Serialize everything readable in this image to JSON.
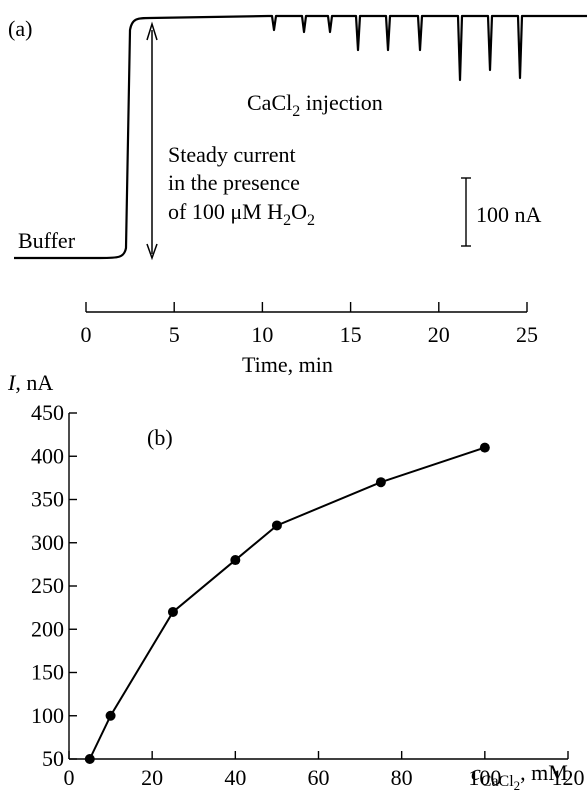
{
  "panel_a": {
    "label": "(a)",
    "annotation_injection": "CaCl",
    "annotation_injection_sub": "2",
    "annotation_injection_rest": " injection",
    "steady_line1": "Steady current",
    "steady_line2": "in the presence",
    "steady_line3_pre": "of 100 μM H",
    "steady_line3_sub1": "2",
    "steady_line3_mid": "O",
    "steady_line3_sub2": "2",
    "buffer_label": "Buffer",
    "scale_label": "100 nA",
    "time_axis_label": "Time, min",
    "time_ticks": [
      0,
      5,
      10,
      15,
      20,
      25
    ]
  },
  "panel_b": {
    "label": "(b)",
    "y_unit_italic": "I",
    "y_unit_rest": ", nA",
    "x_unit_italic": "c",
    "x_unit_sub": "CaCl",
    "x_unit_sub2": "2",
    "x_unit_rest": ", mM"
  },
  "chart_data": [
    {
      "type": "line",
      "x": [
        0,
        2,
        2.6,
        2.8,
        3,
        10.5,
        11,
        12,
        13,
        14,
        15.5,
        17,
        18.5,
        20.5,
        22.5,
        24.5,
        26
      ],
      "xlabel": "Time, min",
      "xlim": [
        0,
        25
      ],
      "xticks": [
        0,
        5,
        10,
        15,
        20,
        25
      ],
      "notes": "Amperometric trace: baseline in buffer, sharp rise to steady current, then downward spikes at each CaCl2 injection; scale bar 100 nA"
    },
    {
      "type": "scatter",
      "x": [
        5,
        10,
        25,
        40,
        50,
        75,
        100
      ],
      "y": [
        50,
        100,
        220,
        280,
        320,
        370,
        410
      ],
      "xlabel": "c CaCl2, mM",
      "ylabel": "I, nA",
      "xlim": [
        0,
        120
      ],
      "ylim": [
        50,
        450
      ],
      "xticks": [
        0,
        20,
        40,
        60,
        80,
        100,
        120
      ],
      "yticks": [
        50,
        100,
        150,
        200,
        250,
        300,
        350,
        400,
        450
      ],
      "line": true,
      "grid": false
    }
  ]
}
